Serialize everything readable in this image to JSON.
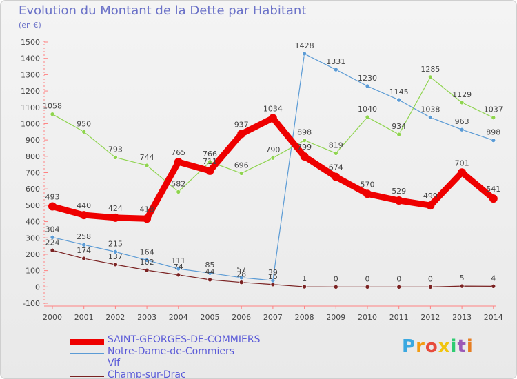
{
  "chart_data": {
    "type": "line",
    "title": "Evolution du Montant de la Dette par Habitant",
    "subtitle": "(en €)",
    "x": [
      "2000",
      "2001",
      "2002",
      "2003",
      "2004",
      "2005",
      "2006",
      "2007",
      "2008",
      "2009",
      "2010",
      "2011",
      "2012",
      "2013",
      "2014"
    ],
    "yticks": [
      "1500",
      "1400",
      "1300",
      "1200",
      "1100",
      "1000",
      "900",
      "800",
      "700",
      "600",
      "500",
      "400",
      "300",
      "200",
      "100",
      "0",
      "-100"
    ],
    "ylim": [
      -100,
      1500
    ],
    "grid": false,
    "series": [
      {
        "name": "SAINT-GEORGES-DE-COMMIERS",
        "color": "#ee0000",
        "values": [
          493,
          440,
          424,
          418,
          765,
          711,
          937,
          1034,
          799,
          674,
          570,
          529,
          499,
          701,
          541
        ],
        "labels": [
          "493",
          "440",
          "424",
          "418",
          "765",
          "711",
          "937",
          "1034",
          "799",
          "674",
          "570",
          "529",
          "499",
          "701",
          "541"
        ]
      },
      {
        "name": "Notre-Dame-de-Commiers",
        "color": "#5b9bd5",
        "values": [
          304,
          258,
          215,
          164,
          111,
          85,
          57,
          39,
          1428,
          1331,
          1230,
          1145,
          1038,
          963,
          898
        ],
        "labels": [
          "304",
          "258",
          "215",
          "164",
          "111",
          "85",
          "57",
          "39",
          "1428",
          "1331",
          "1230",
          "1145",
          "1038",
          "963",
          "898"
        ]
      },
      {
        "name": "Vif",
        "color": "#8fd44f",
        "values": [
          1058,
          950,
          793,
          744,
          582,
          766,
          696,
          790,
          898,
          819,
          1040,
          934,
          1285,
          1129,
          1037
        ],
        "labels": [
          "1058",
          "950",
          "793",
          "744",
          "582",
          "766",
          "696",
          "790",
          "898",
          "819",
          "1040",
          "934",
          "1285",
          "1129",
          "1037"
        ]
      },
      {
        "name": "Champ-sur-Drac",
        "color": "#7a2222",
        "values": [
          224,
          174,
          137,
          102,
          74,
          44,
          28,
          15,
          1,
          0,
          0,
          0,
          0,
          5,
          4
        ],
        "labels": [
          "224",
          "174",
          "137",
          "102",
          "74",
          "44",
          "28",
          "15",
          "1",
          "0",
          "0",
          "0",
          "0",
          "5",
          "4"
        ]
      }
    ]
  },
  "brand": {
    "letters": [
      "P",
      "r",
      "o",
      "x",
      "i",
      "t",
      "i"
    ],
    "colors": [
      "#3aa8e0",
      "#f39c12",
      "#e74c3c",
      "#f1c40f",
      "#2ecc71",
      "#9b59b6",
      "#e67e22"
    ]
  }
}
